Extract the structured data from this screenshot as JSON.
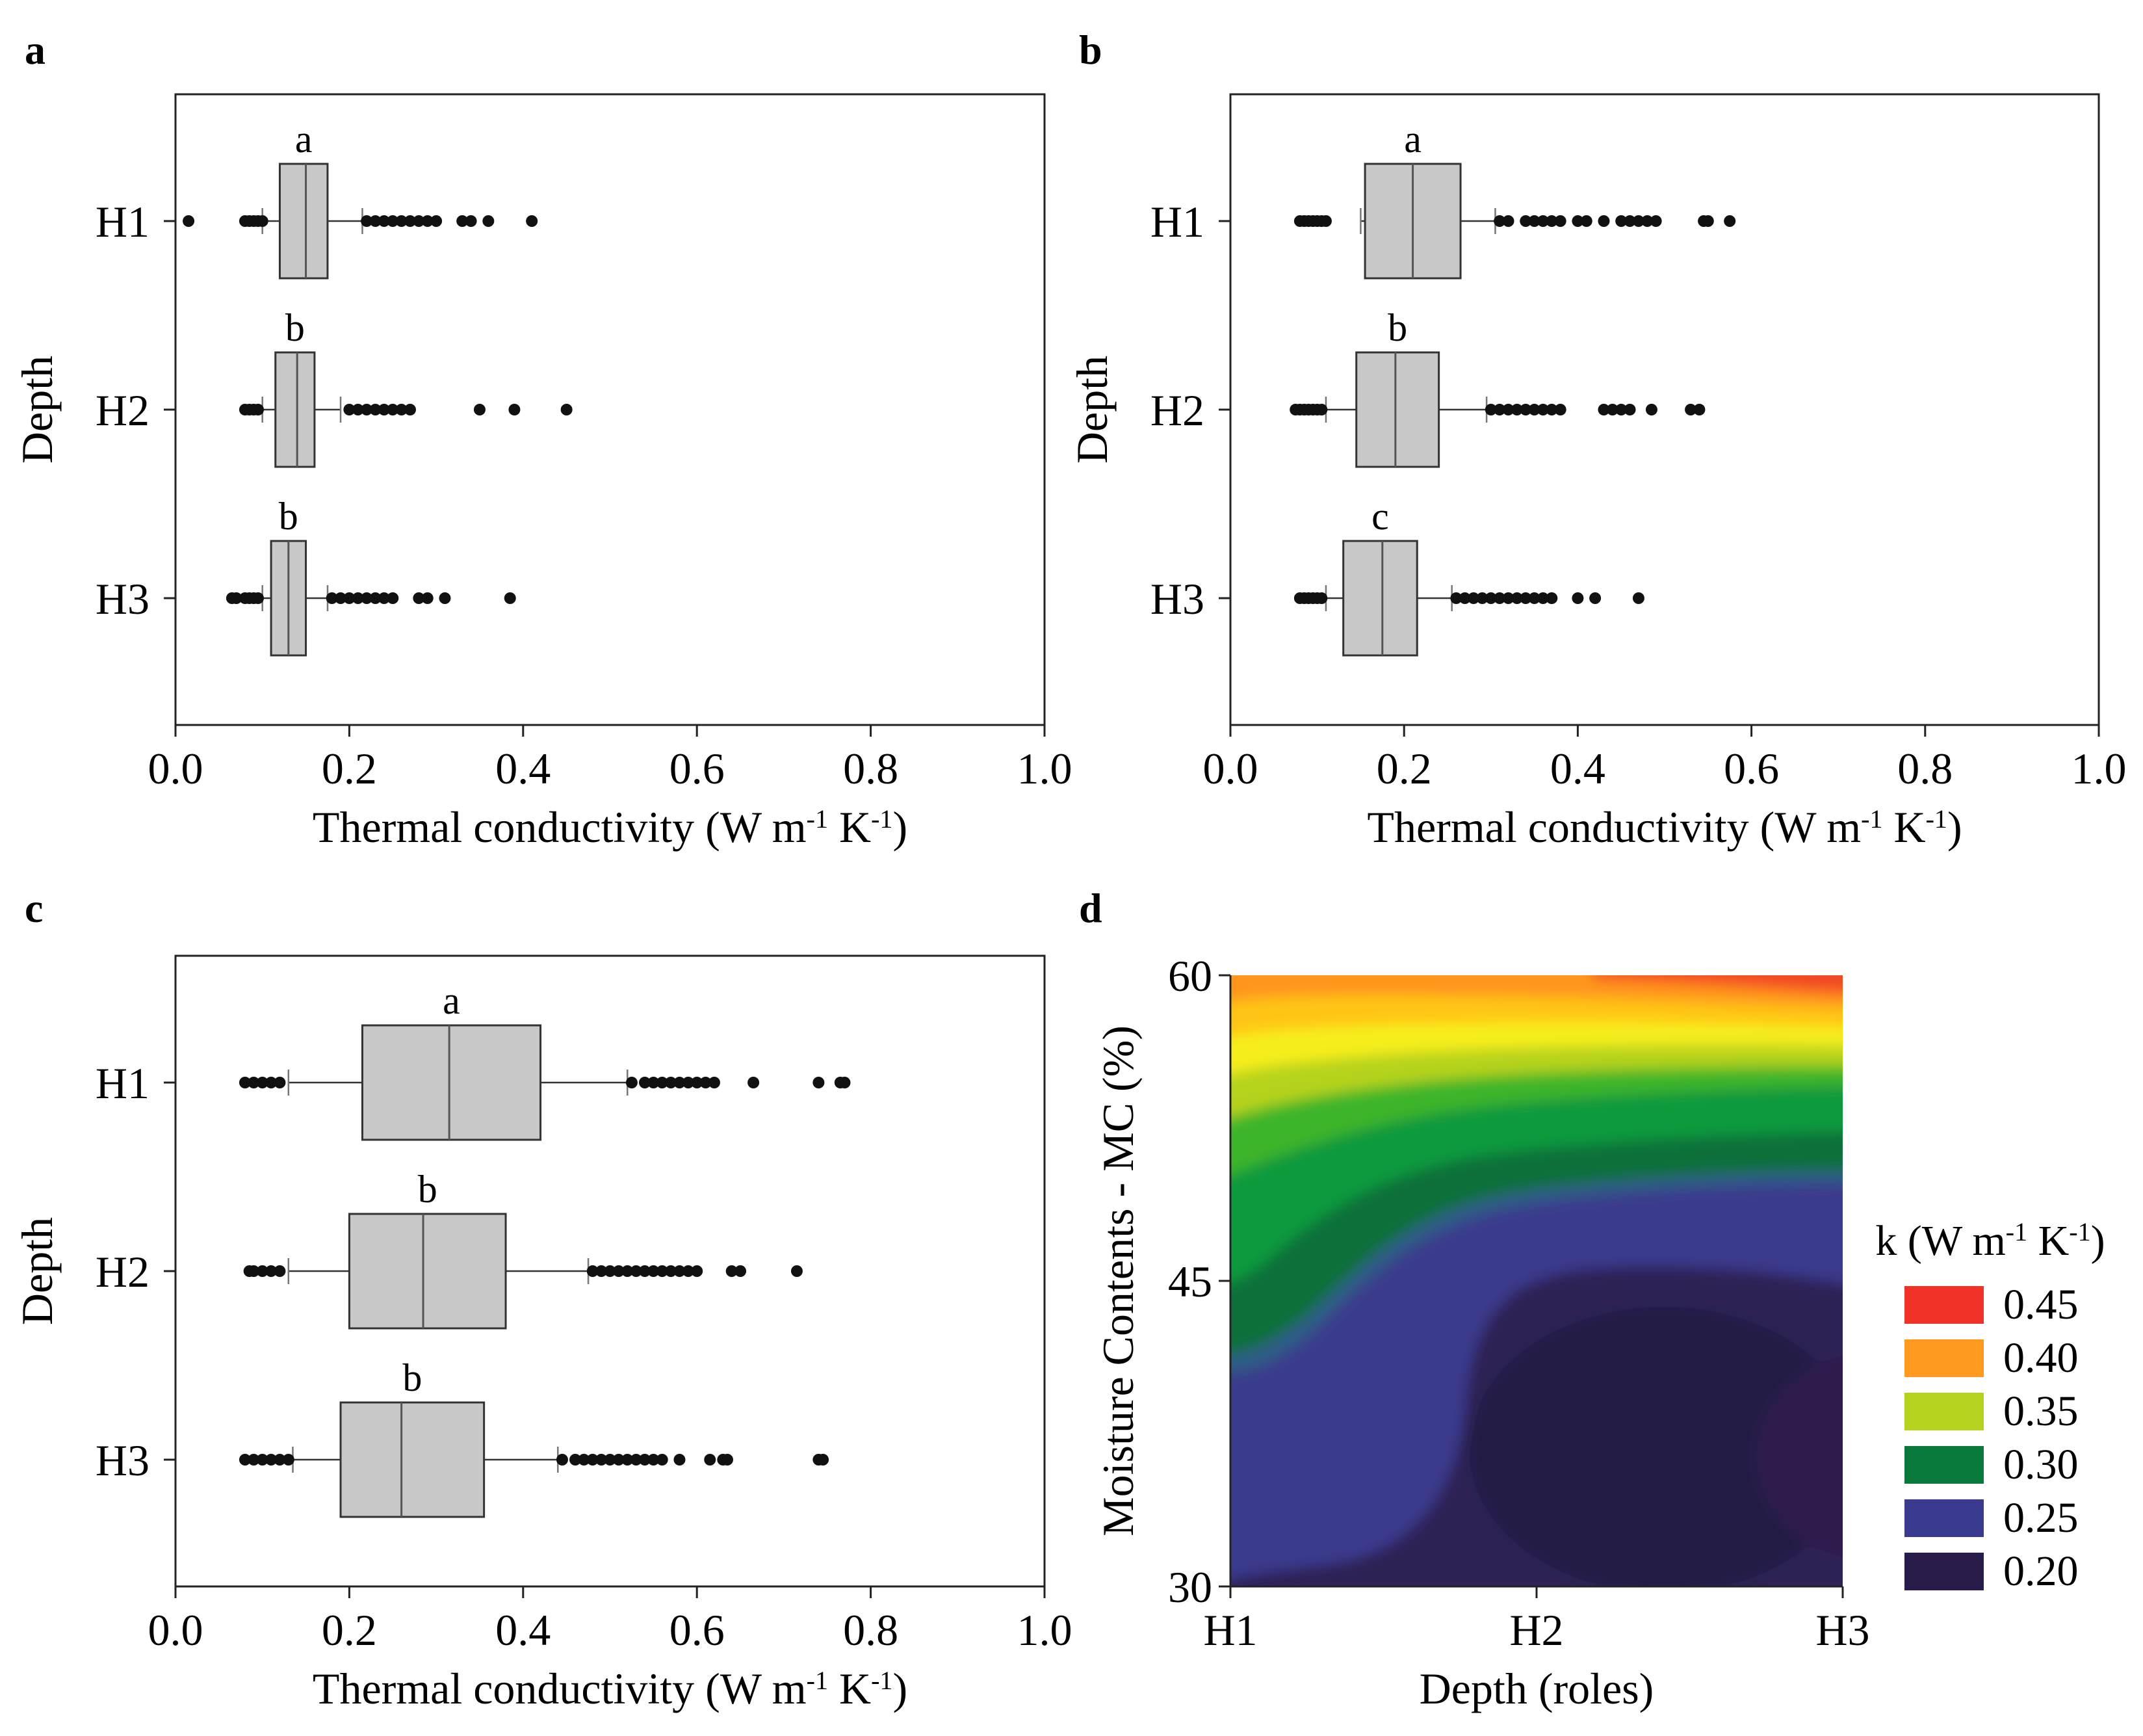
{
  "chart_data": [
    {
      "panel": "a",
      "type": "box",
      "orientation": "horizontal",
      "xlabel": "Thermal conductivity (W m",
      "xlabel_parts": [
        "Thermal conductivity (W m",
        "-1",
        " K",
        "-1",
        ")"
      ],
      "ylabel": "Depth",
      "xlim": [
        0,
        1
      ],
      "xticks": [
        "0.0",
        "0.2",
        "0.4",
        "0.6",
        "0.8",
        "1.0"
      ],
      "categories": [
        "H1",
        "H2",
        "H3"
      ],
      "boxes": [
        {
          "name": "H1",
          "group": "a",
          "whisker_low": 0.1,
          "q1": 0.12,
          "median": 0.15,
          "q3": 0.175,
          "whisker_high": 0.215,
          "outliers": [
            0.015,
            0.08,
            0.085,
            0.09,
            0.095,
            0.1,
            0.22,
            0.23,
            0.24,
            0.25,
            0.26,
            0.27,
            0.28,
            0.29,
            0.3,
            0.33,
            0.34,
            0.36,
            0.41
          ]
        },
        {
          "name": "H2",
          "group": "b",
          "whisker_low": 0.1,
          "q1": 0.115,
          "median": 0.14,
          "q3": 0.16,
          "whisker_high": 0.19,
          "outliers": [
            0.08,
            0.085,
            0.09,
            0.095,
            0.2,
            0.21,
            0.22,
            0.23,
            0.24,
            0.25,
            0.26,
            0.27,
            0.35,
            0.39,
            0.45
          ]
        },
        {
          "name": "H3",
          "group": "b",
          "whisker_low": 0.1,
          "q1": 0.11,
          "median": 0.13,
          "q3": 0.15,
          "whisker_high": 0.175,
          "outliers": [
            0.065,
            0.07,
            0.08,
            0.085,
            0.09,
            0.095,
            0.18,
            0.19,
            0.2,
            0.21,
            0.22,
            0.23,
            0.24,
            0.25,
            0.28,
            0.29,
            0.31,
            0.385
          ]
        }
      ]
    },
    {
      "panel": "b",
      "type": "box",
      "orientation": "horizontal",
      "xlabel": "Thermal conductivity (W m",
      "xlabel_parts": [
        "Thermal conductivity (W m",
        "-1",
        " K",
        "-1",
        ")"
      ],
      "ylabel": "Depth",
      "xlim": [
        0,
        1
      ],
      "xticks": [
        "0.0",
        "0.2",
        "0.4",
        "0.6",
        "0.8",
        "1.0"
      ],
      "categories": [
        "H1",
        "H2",
        "H3"
      ],
      "boxes": [
        {
          "name": "H1",
          "group": "a",
          "whisker_low": 0.15,
          "q1": 0.155,
          "median": 0.21,
          "q3": 0.265,
          "whisker_high": 0.305,
          "outliers": [
            0.08,
            0.085,
            0.09,
            0.095,
            0.1,
            0.105,
            0.11,
            0.31,
            0.32,
            0.34,
            0.35,
            0.36,
            0.37,
            0.38,
            0.4,
            0.41,
            0.43,
            0.45,
            0.46,
            0.47,
            0.48,
            0.49,
            0.545,
            0.55,
            0.575
          ]
        },
        {
          "name": "H2",
          "group": "b",
          "whisker_low": 0.11,
          "q1": 0.145,
          "median": 0.19,
          "q3": 0.24,
          "whisker_high": 0.295,
          "outliers": [
            0.075,
            0.08,
            0.085,
            0.09,
            0.095,
            0.1,
            0.105,
            0.3,
            0.31,
            0.32,
            0.33,
            0.34,
            0.35,
            0.36,
            0.37,
            0.38,
            0.43,
            0.44,
            0.45,
            0.46,
            0.485,
            0.53,
            0.54
          ]
        },
        {
          "name": "H3",
          "group": "c",
          "whisker_low": 0.11,
          "q1": 0.13,
          "median": 0.175,
          "q3": 0.215,
          "whisker_high": 0.255,
          "outliers": [
            0.08,
            0.085,
            0.09,
            0.095,
            0.1,
            0.105,
            0.26,
            0.27,
            0.28,
            0.29,
            0.3,
            0.31,
            0.32,
            0.33,
            0.34,
            0.35,
            0.36,
            0.37,
            0.4,
            0.42,
            0.47
          ]
        }
      ]
    },
    {
      "panel": "c",
      "type": "box",
      "orientation": "horizontal",
      "xlabel": "Thermal conductivity (W m",
      "xlabel_parts": [
        "Thermal conductivity (W m",
        "-1",
        " K",
        "-1",
        ")"
      ],
      "ylabel": "Depth",
      "xlim": [
        0,
        1
      ],
      "xticks": [
        "0.0",
        "0.2",
        "0.4",
        "0.6",
        "0.8",
        "1.0"
      ],
      "categories": [
        "H1",
        "H2",
        "H3"
      ],
      "boxes": [
        {
          "name": "H1",
          "group": "a",
          "whisker_low": 0.13,
          "q1": 0.215,
          "median": 0.315,
          "q3": 0.42,
          "whisker_high": 0.52,
          "outliers": [
            0.08,
            0.09,
            0.1,
            0.11,
            0.12,
            0.525,
            0.54,
            0.55,
            0.56,
            0.57,
            0.58,
            0.59,
            0.6,
            0.61,
            0.62,
            0.665,
            0.74,
            0.765,
            0.77
          ]
        },
        {
          "name": "H2",
          "group": "b",
          "whisker_low": 0.13,
          "q1": 0.2,
          "median": 0.285,
          "q3": 0.38,
          "whisker_high": 0.475,
          "outliers": [
            0.085,
            0.09,
            0.1,
            0.11,
            0.12,
            0.48,
            0.49,
            0.5,
            0.51,
            0.52,
            0.53,
            0.54,
            0.55,
            0.56,
            0.57,
            0.58,
            0.59,
            0.6,
            0.64,
            0.65,
            0.715
          ]
        },
        {
          "name": "H3",
          "group": "b",
          "whisker_low": 0.135,
          "q1": 0.19,
          "median": 0.26,
          "q3": 0.355,
          "whisker_high": 0.44,
          "outliers": [
            0.08,
            0.09,
            0.1,
            0.11,
            0.12,
            0.13,
            0.445,
            0.46,
            0.47,
            0.48,
            0.49,
            0.5,
            0.51,
            0.52,
            0.53,
            0.54,
            0.55,
            0.56,
            0.58,
            0.615,
            0.63,
            0.635,
            0.74,
            0.745
          ]
        }
      ]
    },
    {
      "panel": "d",
      "type": "heatmap",
      "subtype": "filled-contour",
      "xlabel": "Depth (roles)",
      "ylabel": "Moisture Contents - MC (%)",
      "categories": [
        "H1",
        "H2",
        "H3"
      ],
      "ylim": [
        30,
        60
      ],
      "yticks": [
        "30",
        "45",
        "60"
      ],
      "legend_title": "k (W m",
      "legend_title_parts": [
        "k (W m",
        "-1",
        " K",
        "-1",
        ")"
      ],
      "legend": [
        {
          "label": "0.45",
          "color": "#f03228"
        },
        {
          "label": "0.40",
          "color": "#ff9a1e"
        },
        {
          "label": "0.35",
          "color": "#b5d31e"
        },
        {
          "label": "0.30",
          "color": "#0a7a3c"
        },
        {
          "label": "0.25",
          "color": "#3a3a8e"
        },
        {
          "label": "0.20",
          "color": "#2a1c4a"
        }
      ]
    }
  ]
}
